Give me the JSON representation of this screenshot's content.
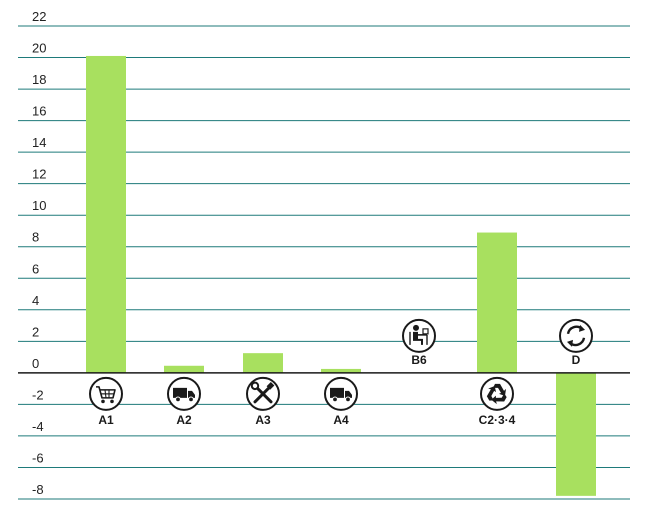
{
  "chart_data": {
    "type": "bar",
    "title": "",
    "xlabel": "",
    "ylabel": "",
    "ylim": [
      -8,
      22
    ],
    "yticks": [
      22,
      20,
      18,
      16,
      14,
      12,
      10,
      8,
      6,
      4,
      2,
      0,
      -2,
      -4,
      -6,
      -8
    ],
    "grid": true,
    "categories": [
      "A1",
      "A2",
      "A3",
      "A4",
      "B6",
      "C2-3-4",
      "D"
    ],
    "category_labels": [
      "A1",
      "A2",
      "A3",
      "A4",
      "B6",
      "C2·3·4",
      "D"
    ],
    "category_icons": [
      "shopping-cart-icon",
      "delivery-truck-icon",
      "tools-icon",
      "delivery-truck-icon",
      "office-worker-icon",
      "recycle-icon",
      "circular-arrows-icon"
    ],
    "values": [
      20.1,
      0.45,
      1.25,
      0.25,
      0.0,
      8.9,
      -7.8
    ],
    "colors": {
      "bar": "#a8e05f",
      "grid": "#1e7a7a",
      "axis": "#1a1a1a",
      "icon": "#1a1a1a"
    }
  }
}
